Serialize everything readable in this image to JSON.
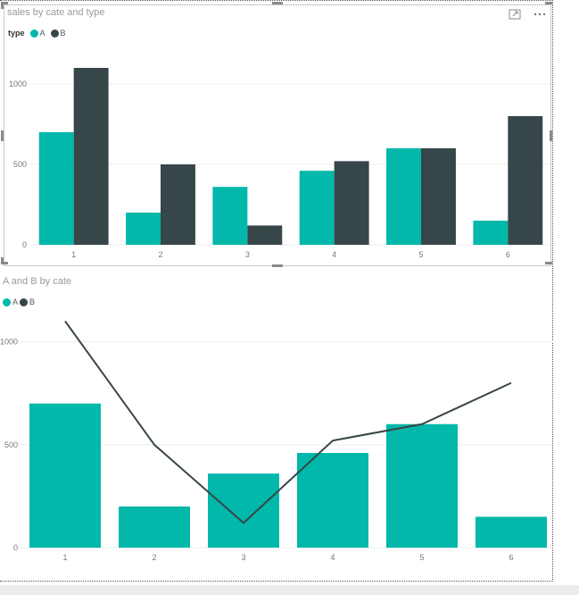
{
  "colors": {
    "A": "#01B8AA",
    "B": "#374649",
    "grid": "#eeeeee",
    "axis_text": "#777777"
  },
  "icons": {
    "focus_mode": "expand-icon",
    "more_options": "ellipsis-icon"
  },
  "visual1": {
    "title": "sales by cate and type",
    "legend": {
      "title": "type",
      "items": [
        "A",
        "B"
      ]
    }
  },
  "visual2": {
    "title": "A and B by cate",
    "legend": {
      "items": [
        "A",
        "B"
      ]
    }
  },
  "chart_data": [
    {
      "type": "bar",
      "title": "sales by cate and type",
      "legend_title": "type",
      "legend_position": "top-left",
      "categories": [
        "1",
        "2",
        "3",
        "4",
        "5",
        "6"
      ],
      "series": [
        {
          "name": "A",
          "values": [
            700,
            200,
            360,
            460,
            600,
            150
          ]
        },
        {
          "name": "B",
          "values": [
            1100,
            500,
            120,
            520,
            600,
            800
          ]
        }
      ],
      "y_ticks": [
        0,
        500,
        1000
      ],
      "ylim": [
        0,
        1150
      ],
      "grid": true
    },
    {
      "type": "bar",
      "title": "A and B by cate",
      "legend_position": "top-left",
      "categories": [
        "1",
        "2",
        "3",
        "4",
        "5",
        "6"
      ],
      "series": [
        {
          "name": "A",
          "kind": "bar",
          "values": [
            700,
            200,
            360,
            460,
            600,
            150
          ]
        },
        {
          "name": "B",
          "kind": "line",
          "values": [
            1100,
            500,
            120,
            520,
            600,
            800
          ]
        }
      ],
      "y_ticks": [
        0,
        500,
        1000
      ],
      "ylim": [
        0,
        1150
      ],
      "grid": true
    }
  ]
}
